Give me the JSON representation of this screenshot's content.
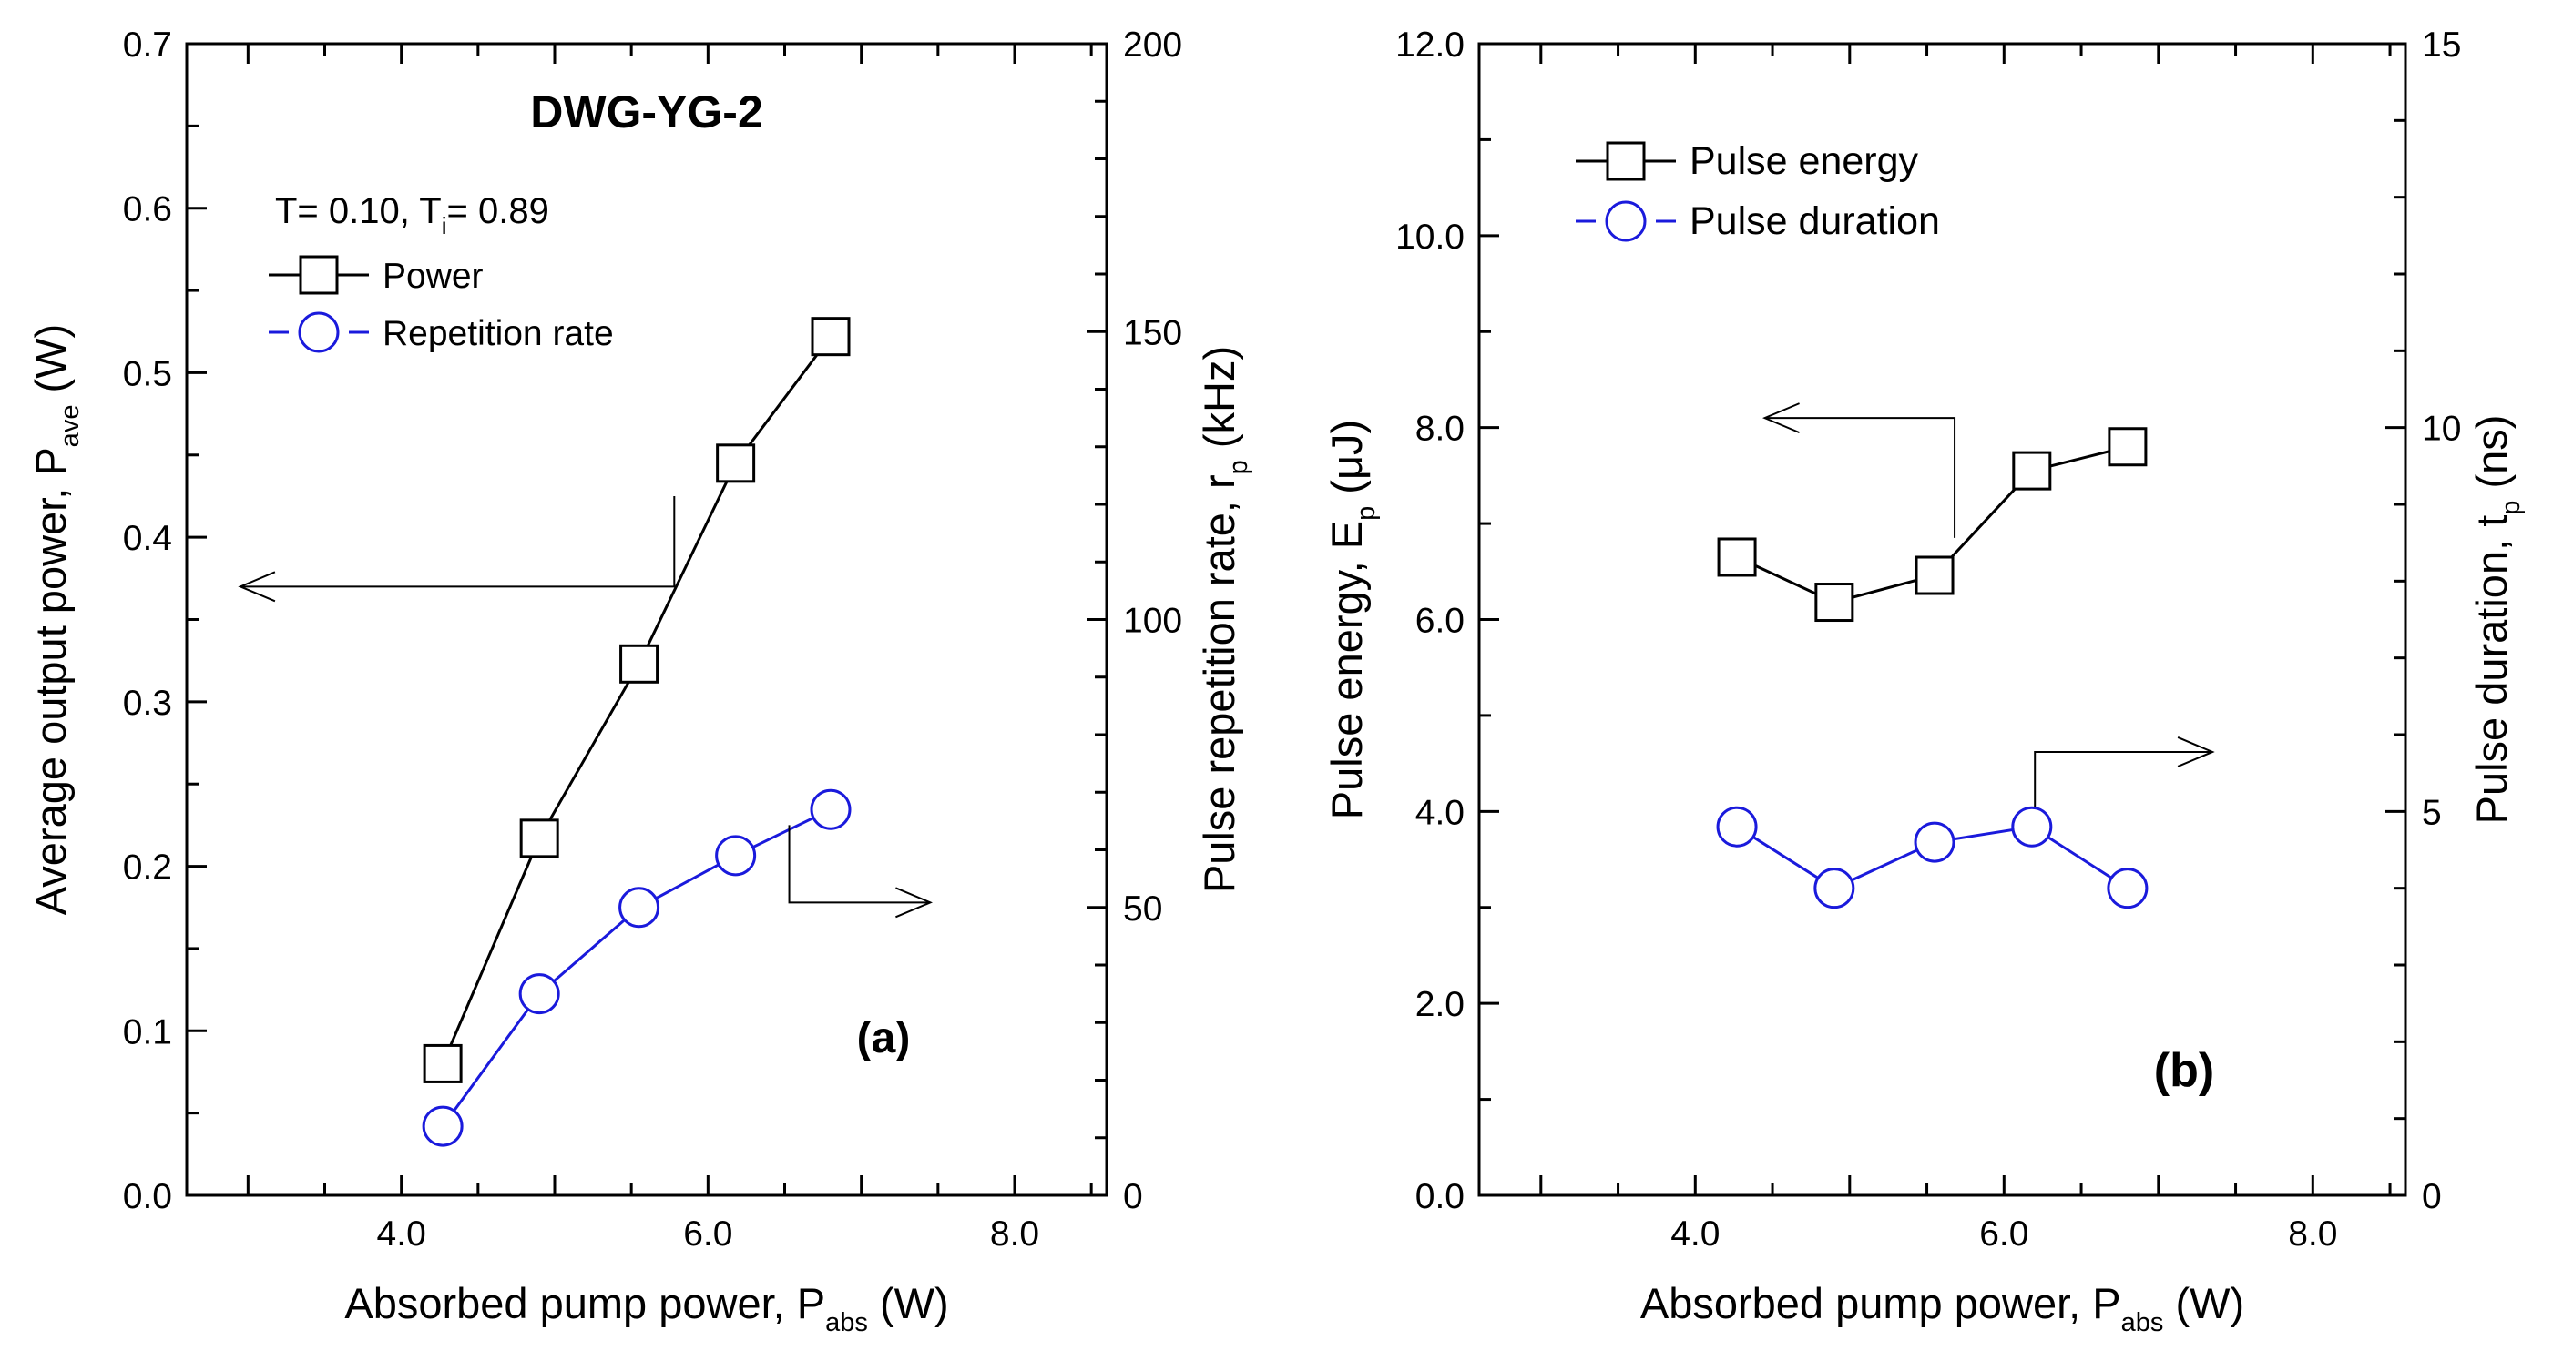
{
  "chart_data": [
    {
      "id": "a",
      "type": "line",
      "panel_label": "(a)",
      "title": "DWG-YG-2",
      "annotation": {
        "prefix": "T= 0.10, T",
        "sub": "i",
        "suffix": "= 0.89"
      },
      "xlabel": {
        "main": "Absorbed pump power, P",
        "sub": "abs",
        "suffix": " (W)"
      },
      "ylabel_left": {
        "main": "Average output power, P",
        "sub": "ave",
        "suffix": " (W)"
      },
      "ylabel_right": {
        "main": "Pulse repetition rate, r",
        "sub": "p",
        "suffix": " (kHz)"
      },
      "xlim": [
        2.6,
        8.6
      ],
      "xticks": [
        4.0,
        6.0,
        8.0
      ],
      "xtick_labels": [
        "4.0",
        "6.0",
        "8.0"
      ],
      "ylim_left": [
        0,
        0.7
      ],
      "yticks_left": [
        0,
        0.1,
        0.2,
        0.3,
        0.4,
        0.5,
        0.6,
        0.7
      ],
      "ytick_labels_left": [
        "0.0",
        "0.1",
        "0.2",
        "0.3",
        "0.4",
        "0.5",
        "0.6",
        "0.7"
      ],
      "ylim_right": [
        0,
        200
      ],
      "yticks_right": [
        0,
        50,
        100,
        150,
        200
      ],
      "ytick_labels_right": [
        "0",
        "50",
        "100",
        "150",
        "200"
      ],
      "x": [
        4.27,
        4.9,
        5.55,
        6.18,
        6.8
      ],
      "series": [
        {
          "name": "Power",
          "axis": "left",
          "marker": "square",
          "color": "#000000",
          "values": [
            0.08,
            0.217,
            0.323,
            0.445,
            0.522
          ]
        },
        {
          "name": "Repetition rate",
          "axis": "right",
          "marker": "circle",
          "color": "#1a1adc",
          "values": [
            12,
            35,
            50,
            59,
            67
          ]
        }
      ],
      "arrows": [
        {
          "points": [
            [
              5.78,
              0.425
            ],
            [
              5.78,
              0.37
            ],
            [
              2.95,
              0.37
            ]
          ],
          "axis": "left"
        },
        {
          "points": [
            [
              6.53,
              0.225
            ],
            [
              6.53,
              0.178
            ],
            [
              7.45,
              0.178
            ]
          ],
          "axis": "left"
        }
      ]
    },
    {
      "id": "b",
      "type": "line",
      "panel_label": "(b)",
      "xlabel": {
        "main": "Absorbed pump power, P",
        "sub": "abs",
        "suffix": " (W)"
      },
      "ylabel_left": {
        "main": "Pulse energy, E",
        "sub": "p",
        "suffix": " (μJ)"
      },
      "ylabel_right": {
        "main": "Pulse duration, t",
        "sub": "p",
        "suffix": " (ns)"
      },
      "xlim": [
        2.6,
        8.6
      ],
      "xticks": [
        4.0,
        6.0,
        8.0
      ],
      "xtick_labels": [
        "4.0",
        "6.0",
        "8.0"
      ],
      "ylim_left": [
        0,
        12
      ],
      "yticks_left": [
        0,
        2,
        4,
        6,
        8,
        10,
        12
      ],
      "ytick_labels_left": [
        "0.0",
        "2.0",
        "4.0",
        "6.0",
        "8.0",
        "10.0",
        "12.0"
      ],
      "ylim_right": [
        0,
        15
      ],
      "yticks_right": [
        0,
        5,
        10,
        15
      ],
      "ytick_labels_right": [
        "0",
        "5",
        "10",
        "15"
      ],
      "x": [
        4.27,
        4.9,
        5.55,
        6.18,
        6.8
      ],
      "series": [
        {
          "name": "Pulse energy",
          "axis": "left",
          "marker": "square",
          "color": "#000000",
          "values": [
            6.65,
            6.18,
            6.46,
            7.55,
            7.8
          ]
        },
        {
          "name": "Pulse duration",
          "axis": "right",
          "marker": "circle",
          "color": "#1a1adc",
          "values": [
            4.8,
            4.0,
            4.6,
            4.8,
            4.0
          ]
        }
      ],
      "arrows": [
        {
          "points": [
            [
              5.68,
              6.85
            ],
            [
              5.68,
              8.1
            ],
            [
              4.45,
              8.1
            ]
          ],
          "axis": "left"
        },
        {
          "points": [
            [
              6.2,
              4.05
            ],
            [
              6.2,
              4.62
            ],
            [
              7.35,
              4.62
            ]
          ],
          "axis": "left"
        }
      ]
    }
  ]
}
